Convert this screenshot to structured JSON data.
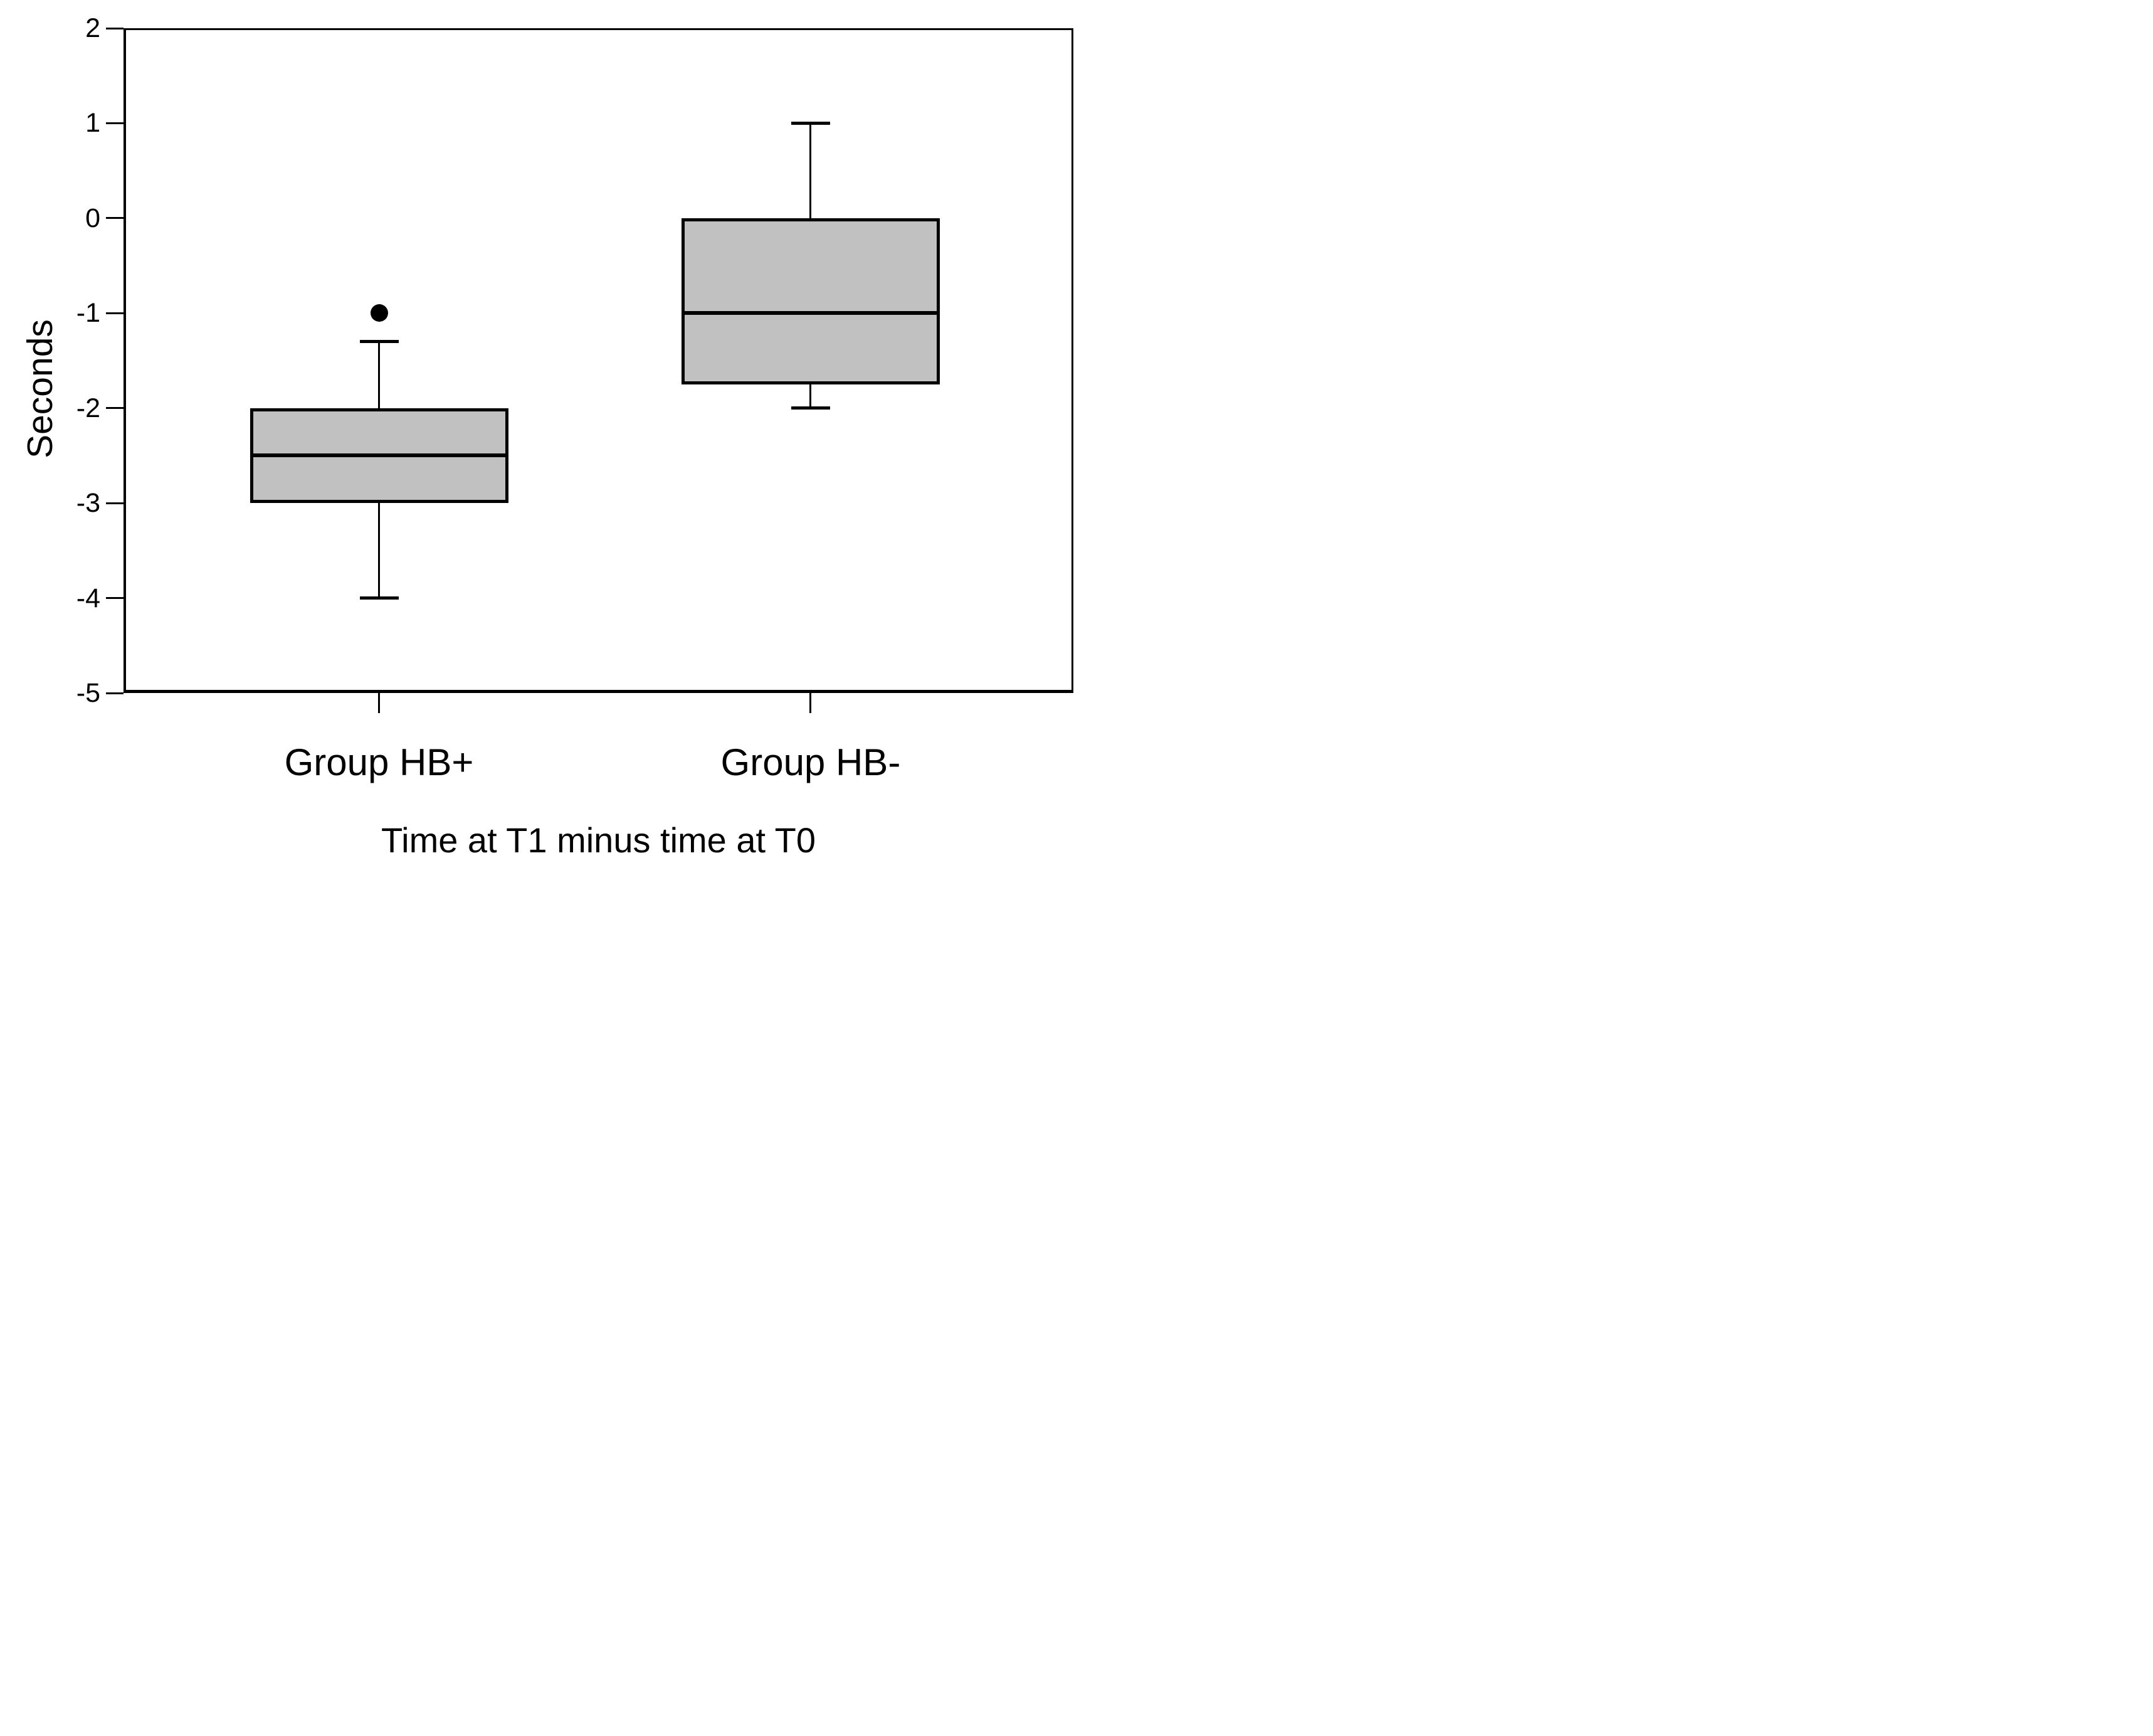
{
  "figure": {
    "background": "#ffffff"
  },
  "chart_data": {
    "type": "box",
    "title": "",
    "xlabel": "Time at T1 minus time at T0",
    "ylabel": "Seconds",
    "ylim": [
      -5,
      2
    ],
    "yticks": [
      2,
      1,
      0,
      -1,
      -2,
      -3,
      -4,
      -5
    ],
    "categories": [
      "Group HB+",
      "Group HB-"
    ],
    "series": [
      {
        "name": "Group HB+",
        "whisker_low": -4,
        "q1": -3,
        "median": -2.5,
        "q3": -2,
        "whisker_high": -1.3,
        "outliers": [
          -1
        ]
      },
      {
        "name": "Group HB-",
        "whisker_low": -2,
        "q1": -1.75,
        "median": -1,
        "q3": 0,
        "whisker_high": 1,
        "outliers": []
      }
    ],
    "legend": "none",
    "grid": "off",
    "box_fill": "#c1c1c1",
    "line_color": "#000000"
  }
}
